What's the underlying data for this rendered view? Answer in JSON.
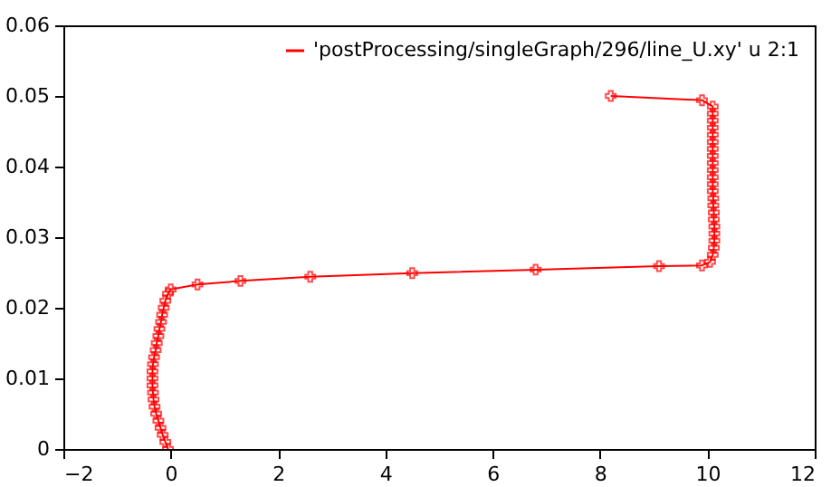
{
  "chart_data": {
    "type": "line",
    "xlim": [
      -2,
      12
    ],
    "ylim": [
      0,
      0.06
    ],
    "xticks": [
      -2,
      0,
      2,
      4,
      6,
      8,
      10,
      12
    ],
    "yticks": [
      0,
      0.01,
      0.02,
      0.03,
      0.04,
      0.05,
      0.06
    ],
    "grid": false,
    "legend": "top right",
    "marker": "cross",
    "line_style": "solid",
    "series": [
      {
        "name": "'postProcessing/singleGraph/296/line_U.xy' u 2:1",
        "color": "#ff0000",
        "x": [
          -0.05,
          -0.1,
          -0.15,
          -0.19,
          -0.23,
          -0.27,
          -0.3,
          -0.32,
          -0.33,
          -0.34,
          -0.34,
          -0.34,
          -0.33,
          -0.31,
          -0.28,
          -0.26,
          -0.23,
          -0.21,
          -0.18,
          -0.16,
          -0.13,
          -0.1,
          -0.05,
          0.0,
          0.5,
          1.3,
          2.6,
          4.5,
          6.8,
          9.1,
          9.9,
          10.05,
          10.1,
          10.12,
          10.13,
          10.13,
          10.13,
          10.12,
          10.12,
          10.11,
          10.11,
          10.1,
          10.1,
          10.1,
          10.1,
          10.1,
          10.1,
          10.1,
          10.1,
          10.1,
          10.1,
          10.1,
          10.1,
          10.1,
          9.9,
          8.2
        ],
        "values": [
          0,
          0.001,
          0.002,
          0.003,
          0.004,
          0.005,
          0.006,
          0.007,
          0.008,
          0.009,
          0.01,
          0.011,
          0.012,
          0.013,
          0.014,
          0.015,
          0.016,
          0.017,
          0.018,
          0.019,
          0.02,
          0.021,
          0.022,
          0.0226,
          0.0233,
          0.0238,
          0.0244,
          0.0249,
          0.0254,
          0.0259,
          0.026,
          0.0265,
          0.0275,
          0.0285,
          0.0295,
          0.0305,
          0.0315,
          0.0325,
          0.0335,
          0.0345,
          0.0355,
          0.0365,
          0.0375,
          0.0385,
          0.0395,
          0.0405,
          0.0415,
          0.0425,
          0.0435,
          0.0445,
          0.0455,
          0.0465,
          0.0475,
          0.0485,
          0.0494,
          0.05
        ]
      }
    ]
  }
}
